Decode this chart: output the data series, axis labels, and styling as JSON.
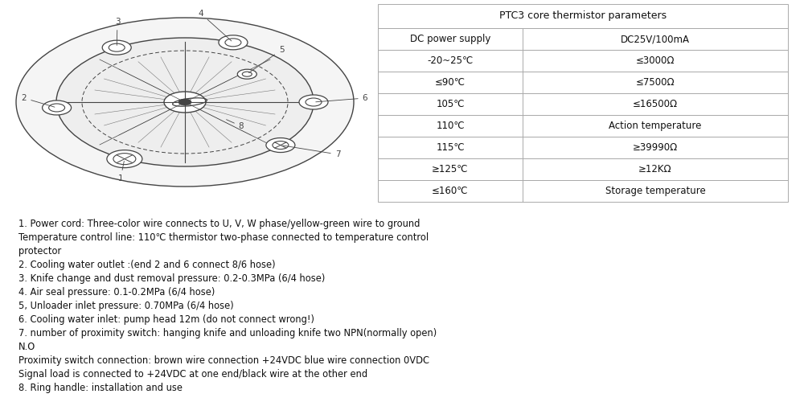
{
  "bg_color": "#ffffff",
  "table_title": "PTC3 core thermistor parameters",
  "table_col1": [
    "DC power supply",
    "-20~25℃",
    "≤90℃",
    "105℃",
    "110℃",
    "115℃",
    "≥125℃",
    "≤160℃"
  ],
  "table_col2": [
    "DC25V/100mA",
    "≤3000Ω",
    "≤7500Ω",
    "≤16500Ω",
    "Action temperature",
    "≥39990Ω",
    "≥12KΩ",
    "Storage temperature"
  ],
  "description_lines": [
    "1. Power cord: Three-color wire connects to U, V, W phase/yellow-green wire to ground",
    "Temperature control line: 110℃ thermistor two-phase connected to temperature control",
    "protector",
    "2. Cooling water outlet :(end 2 and 6 connect 8/6 hose)",
    "3. Knife change and dust removal pressure: 0.2-0.3MPa (6/4 hose)",
    "4. Air seal pressure: 0.1-0.2MPa (6/4 hose)",
    "5, Unloader inlet pressure: 0.70MPa (6/4 hose)",
    "6. Cooling water inlet: pump head 12m (do not connect wrong!)",
    "7. number of proximity switch: hanging knife and unloading knife two NPN(normally open)",
    "N.O",
    "Proximity switch connection: brown wire connection +24VDC blue wire connection 0VDC",
    "Signal load is connected to +24VDC at one end/black wire at the other end",
    "8. Ring handle: installation and use"
  ]
}
